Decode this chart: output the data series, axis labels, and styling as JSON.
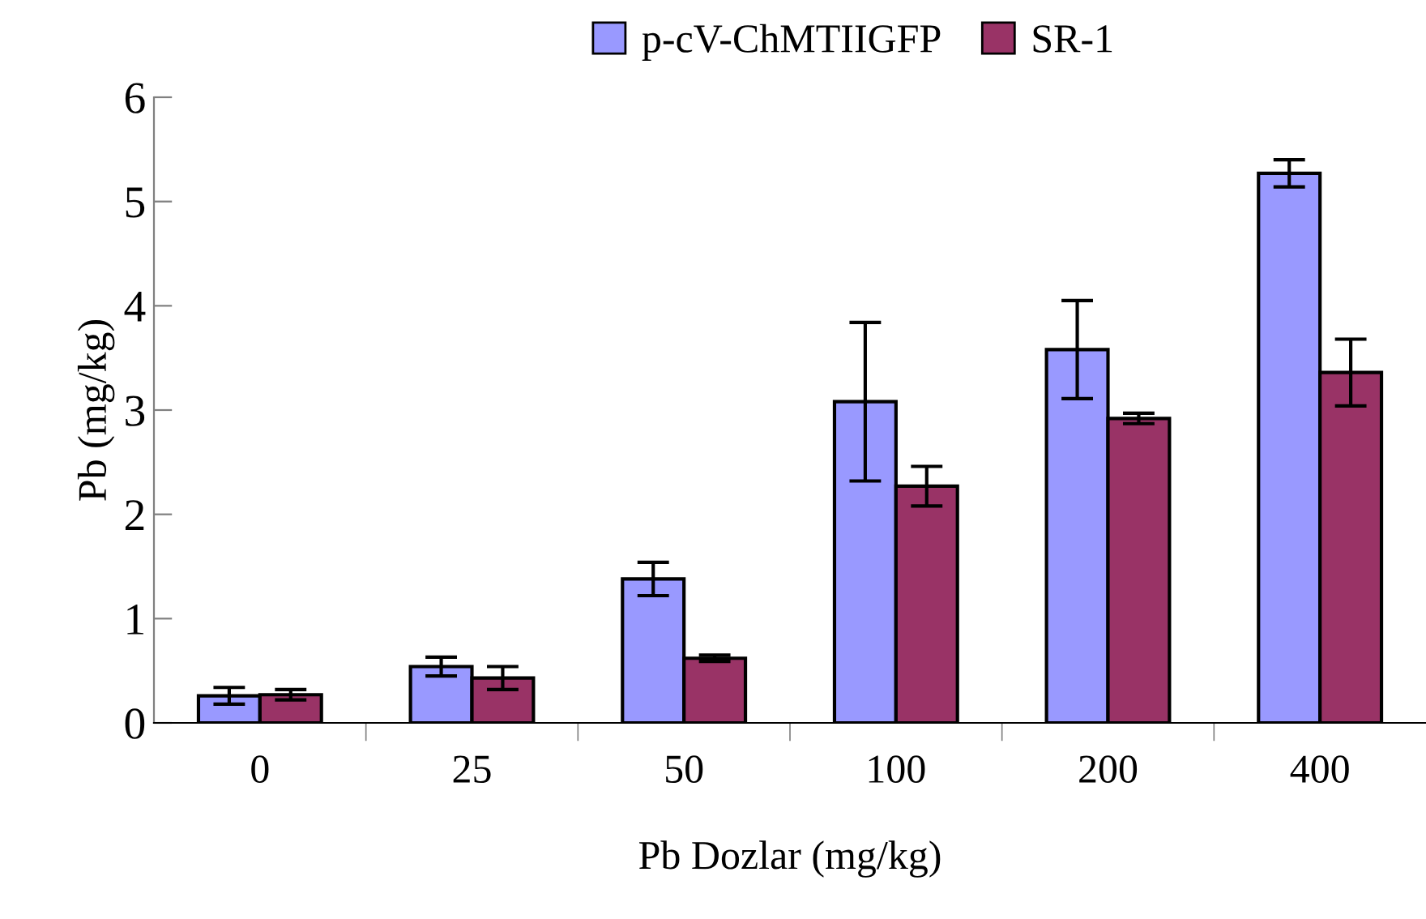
{
  "chart_data": {
    "type": "bar",
    "xlabel": "Pb Dozlar (mg/kg)",
    "ylabel": "Pb (mg/kg)",
    "categories": [
      "0",
      "25",
      "50",
      "100",
      "200",
      "400"
    ],
    "series": [
      {
        "name": "p-cV-ChMTIIGFP",
        "color": "#9999ff",
        "values": [
          0.26,
          0.54,
          1.38,
          3.08,
          3.58,
          5.27
        ],
        "errors": [
          0.08,
          0.09,
          0.16,
          0.76,
          0.47,
          0.13
        ]
      },
      {
        "name": "SR-1",
        "color": "#993366",
        "values": [
          0.27,
          0.43,
          0.62,
          2.27,
          2.92,
          3.36
        ],
        "errors": [
          0.05,
          0.11,
          0.03,
          0.19,
          0.05,
          0.32
        ]
      }
    ],
    "ylim": [
      0,
      6
    ],
    "yticks": [
      0,
      1,
      2,
      3,
      4,
      5,
      6
    ],
    "grid": false,
    "legend": "top"
  }
}
